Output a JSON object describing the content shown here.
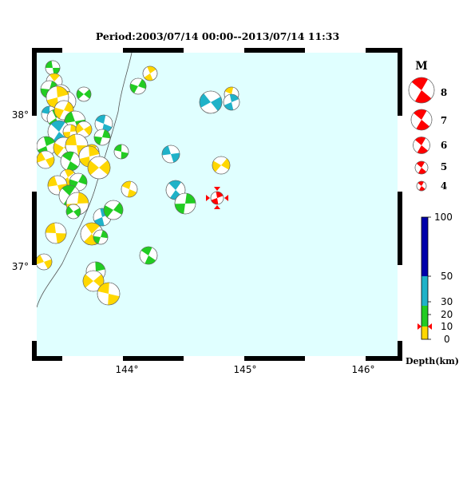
{
  "title": "Period:2003/07/14 00:00--2013/07/14 11:33",
  "axes": {
    "x_ticks": [
      "144°",
      "145°",
      "146°"
    ],
    "y_ticks": [
      "38°",
      "37°"
    ]
  },
  "magnitude_legend": {
    "header": "M",
    "items": [
      "8",
      "7",
      "6",
      "5",
      "4"
    ]
  },
  "depth_legend": {
    "ticks": [
      "100",
      "50",
      "30",
      "20",
      "10",
      "0"
    ],
    "label": "Depth(km)"
  },
  "colors": {
    "sea": "#e0ffff",
    "depth_0_10": "#ffd700",
    "depth_10_30": "#22cc22",
    "depth_30_50": "#20b2c8",
    "depth_50_100": "#0000aa",
    "highlight": "#ff0000"
  },
  "mechanisms": [
    {
      "x": 66,
      "y": 85,
      "c": "green"
    },
    {
      "x": 68,
      "y": 102,
      "c": "yellow"
    },
    {
      "x": 62,
      "y": 112,
      "c": "green"
    },
    {
      "x": 76,
      "y": 118,
      "c": "cyan"
    },
    {
      "x": 82,
      "y": 127,
      "c": "yellow"
    },
    {
      "x": 72,
      "y": 122,
      "c": "yellow"
    },
    {
      "x": 105,
      "y": 118,
      "c": "green"
    },
    {
      "x": 62,
      "y": 143,
      "c": "cyan"
    },
    {
      "x": 70,
      "y": 148,
      "c": "green"
    },
    {
      "x": 80,
      "y": 138,
      "c": "yellow"
    },
    {
      "x": 94,
      "y": 152,
      "c": "green"
    },
    {
      "x": 74,
      "y": 165,
      "c": "cyan"
    },
    {
      "x": 88,
      "y": 165,
      "c": "yellow"
    },
    {
      "x": 105,
      "y": 162,
      "c": "yellow"
    },
    {
      "x": 130,
      "y": 155,
      "c": "cyan"
    },
    {
      "x": 58,
      "y": 183,
      "c": "green"
    },
    {
      "x": 80,
      "y": 185,
      "c": "yellow"
    },
    {
      "x": 96,
      "y": 182,
      "c": "yellow"
    },
    {
      "x": 115,
      "y": 190,
      "c": "yellow"
    },
    {
      "x": 128,
      "y": 172,
      "c": "green"
    },
    {
      "x": 57,
      "y": 200,
      "c": "yellow"
    },
    {
      "x": 88,
      "y": 202,
      "c": "green"
    },
    {
      "x": 112,
      "y": 196,
      "c": "yellow"
    },
    {
      "x": 124,
      "y": 210,
      "c": "yellow"
    },
    {
      "x": 152,
      "y": 190,
      "c": "green"
    },
    {
      "x": 85,
      "y": 222,
      "c": "yellow"
    },
    {
      "x": 98,
      "y": 228,
      "c": "green"
    },
    {
      "x": 72,
      "y": 232,
      "c": "yellow"
    },
    {
      "x": 87,
      "y": 245,
      "c": "green"
    },
    {
      "x": 97,
      "y": 255,
      "c": "yellow"
    },
    {
      "x": 92,
      "y": 265,
      "c": "green"
    },
    {
      "x": 162,
      "y": 237,
      "c": "yellow"
    },
    {
      "x": 128,
      "y": 272,
      "c": "cyan"
    },
    {
      "x": 142,
      "y": 263,
      "c": "green"
    },
    {
      "x": 70,
      "y": 292,
      "c": "yellow"
    },
    {
      "x": 115,
      "y": 293,
      "c": "yellow"
    },
    {
      "x": 126,
      "y": 297,
      "c": "green"
    },
    {
      "x": 55,
      "y": 328,
      "c": "yellow"
    },
    {
      "x": 186,
      "y": 320,
      "c": "green"
    },
    {
      "x": 120,
      "y": 340,
      "c": "green"
    },
    {
      "x": 117,
      "y": 352,
      "c": "yellow"
    },
    {
      "x": 136,
      "y": 368,
      "c": "yellow"
    },
    {
      "x": 188,
      "y": 92,
      "c": "yellow"
    },
    {
      "x": 173,
      "y": 108,
      "c": "green"
    },
    {
      "x": 214,
      "y": 193,
      "c": "cyan"
    },
    {
      "x": 220,
      "y": 238,
      "c": "cyan"
    },
    {
      "x": 232,
      "y": 255,
      "c": "green"
    },
    {
      "x": 264,
      "y": 128,
      "c": "cyan"
    },
    {
      "x": 290,
      "y": 118,
      "c": "yellow"
    },
    {
      "x": 290,
      "y": 128,
      "c": "cyan"
    },
    {
      "x": 277,
      "y": 207,
      "c": "yellow"
    }
  ],
  "highlight_event": {
    "x": 272,
    "y": 248
  }
}
